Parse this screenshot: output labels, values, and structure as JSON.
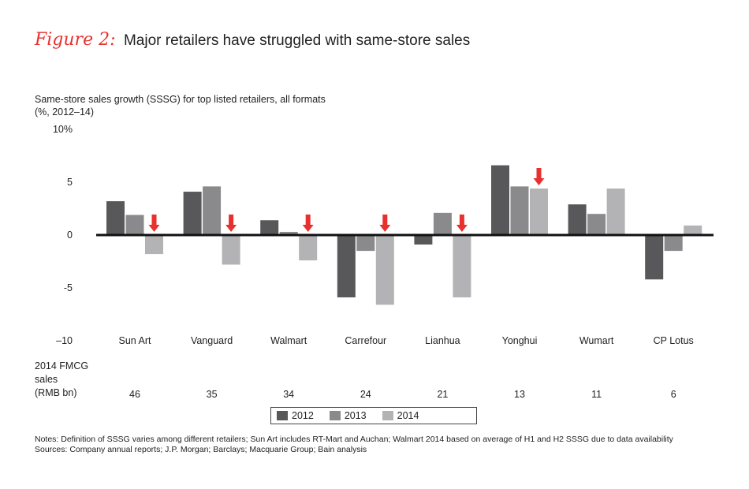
{
  "header": {
    "figure_label": "Figure 2:",
    "title": "Major retailers have struggled with same-store sales"
  },
  "subtitle": {
    "line1": "Same-store sales growth (SSSG) for top listed retailers, all formats",
    "line2": "(%, 2012–14)"
  },
  "chart_data": {
    "type": "bar",
    "title": "Major retailers have struggled with same-store sales",
    "ylabel": "Same-store sales growth (SSSG) for top listed retailers, all formats (%, 2012–14)",
    "xlabel": "",
    "ylim": [
      -10,
      10
    ],
    "yticks": [
      10,
      5,
      0,
      -5,
      -10
    ],
    "ytick_labels": [
      "10%",
      "5",
      "0",
      "-5",
      "–10"
    ],
    "categories": [
      "Sun Art",
      "Vanguard",
      "Walmart",
      "Carrefour",
      "Lianhua",
      "Yonghui",
      "Wumart",
      "CP Lotus"
    ],
    "series": [
      {
        "name": "2012",
        "color": "#58585a",
        "values": [
          3.2,
          4.1,
          1.4,
          -5.9,
          -0.9,
          6.6,
          2.9,
          -4.2
        ]
      },
      {
        "name": "2013",
        "color": "#8a8a8c",
        "values": [
          1.9,
          4.6,
          0.3,
          -1.5,
          2.1,
          4.6,
          2.0,
          -1.5
        ]
      },
      {
        "name": "2014",
        "color": "#b3b3b5",
        "values": [
          -1.8,
          -2.8,
          -2.4,
          -6.6,
          -5.9,
          4.4,
          4.4,
          0.9
        ]
      }
    ],
    "decline_markers": [
      "Sun Art",
      "Vanguard",
      "Walmart",
      "Carrefour",
      "Lianhua",
      "Yonghui"
    ],
    "marker_color": "#e8302e",
    "grid": false,
    "legend_position": "bottom-center"
  },
  "sales_row": {
    "label_lines": [
      "2014 FMCG",
      "sales",
      "(RMB bn)"
    ],
    "values": [
      "46",
      "35",
      "34",
      "24",
      "21",
      "13",
      "11",
      "6"
    ]
  },
  "legend": {
    "items": [
      {
        "label": "2012",
        "color": "#58585a"
      },
      {
        "label": "2013",
        "color": "#8a8a8c"
      },
      {
        "label": "2014",
        "color": "#b3b3b5"
      }
    ]
  },
  "footer": {
    "notes": "Notes: Definition of SSSG varies among different retailers; Sun Art includes RT-Mart and Auchan; Walmart 2014 based on average of H1 and H2 SSSG due to data availability",
    "sources": "Sources: Company annual reports; J.P. Morgan; Barclays; Macquarie Group; Bain analysis"
  }
}
